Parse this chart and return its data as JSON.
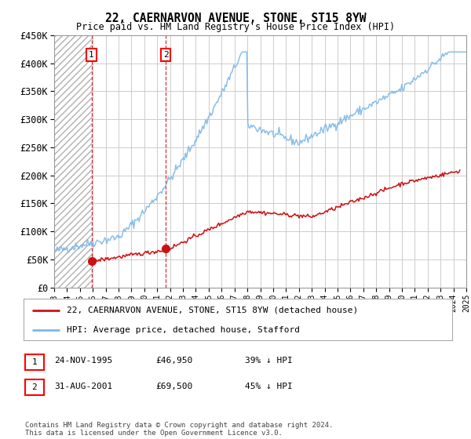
{
  "title": "22, CAERNARVON AVENUE, STONE, ST15 8YW",
  "subtitle": "Price paid vs. HM Land Registry's House Price Index (HPI)",
  "ylabel_ticks": [
    "£0",
    "£50K",
    "£100K",
    "£150K",
    "£200K",
    "£250K",
    "£300K",
    "£350K",
    "£400K",
    "£450K"
  ],
  "ylim": [
    0,
    450000
  ],
  "yticks": [
    0,
    50000,
    100000,
    150000,
    200000,
    250000,
    300000,
    350000,
    400000,
    450000
  ],
  "xstart": 1993,
  "xend": 2025,
  "purchase1_year": 1995.9,
  "purchase1_price": 46950,
  "purchase2_year": 2001.66,
  "purchase2_price": 69500,
  "legend_line1": "22, CAERNARVON AVENUE, STONE, ST15 8YW (detached house)",
  "legend_line2": "HPI: Average price, detached house, Stafford",
  "table_row1": [
    "1",
    "24-NOV-1995",
    "£46,950",
    "39% ↓ HPI"
  ],
  "table_row2": [
    "2",
    "31-AUG-2001",
    "£69,500",
    "45% ↓ HPI"
  ],
  "footnote": "Contains HM Land Registry data © Crown copyright and database right 2024.\nThis data is licensed under the Open Government Licence v3.0.",
  "hpi_color": "#7db8e8",
  "price_color": "#cc1111",
  "grid_color": "#cccccc",
  "background_color": "#ffffff"
}
